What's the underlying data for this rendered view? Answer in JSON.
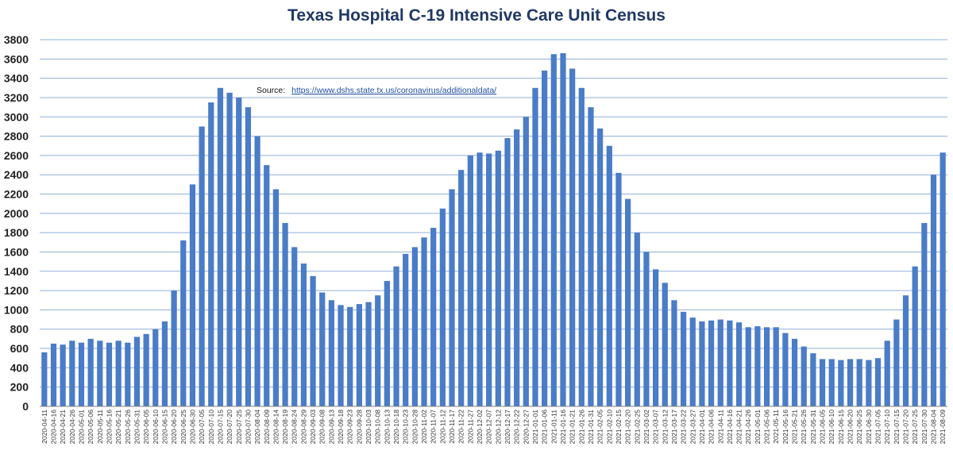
{
  "chart_data": {
    "type": "bar",
    "title": "Texas Hospital C-19 Intensive Care Unit Census",
    "source_label": "Source:",
    "source_url": "https://www.dshs.state.tx.us/coronavirus/additionaldata/",
    "ylim": [
      0,
      3800
    ],
    "y_ticks": [
      0,
      200,
      400,
      600,
      800,
      1000,
      1200,
      1400,
      1600,
      1800,
      2000,
      2200,
      2400,
      2600,
      2800,
      3000,
      3200,
      3400,
      3600,
      3800
    ],
    "x_tick_labels": [
      "2020-04-11",
      "2020-04-16",
      "2020-04-21",
      "2020-04-26",
      "2020-05-01",
      "2020-05-06",
      "2020-05-11",
      "2020-05-16",
      "2020-05-21",
      "2020-05-26",
      "2020-05-31",
      "2020-06-05",
      "2020-06-10",
      "2020-06-15",
      "2020-06-20",
      "2020-06-25",
      "2020-06-30",
      "2020-07-05",
      "2020-07-10",
      "2020-07-15",
      "2020-07-20",
      "2020-07-25",
      "2020-07-30",
      "2020-08-04",
      "2020-08-09",
      "2020-08-14",
      "2020-08-19",
      "2020-08-24",
      "2020-08-29",
      "2020-09-03",
      "2020-09-08",
      "2020-09-13",
      "2020-09-18",
      "2020-09-23",
      "2020-09-28",
      "2020-10-03",
      "2020-10-08",
      "2020-10-13",
      "2020-10-18",
      "2020-10-23",
      "2020-10-28",
      "2020-11-02",
      "2020-11-07",
      "2020-11-12",
      "2020-11-17",
      "2020-11-22",
      "2020-11-27",
      "2020-12-02",
      "2020-12-07",
      "2020-12-12",
      "2020-12-17",
      "2020-12-22",
      "2020-12-27",
      "2021-01-01",
      "2021-01-06",
      "2021-01-11",
      "2021-01-16",
      "2021-01-21",
      "2021-01-26",
      "2021-01-31",
      "2021-02-05",
      "2021-02-10",
      "2021-02-15",
      "2021-02-20",
      "2021-02-25",
      "2021-03-02",
      "2021-03-07",
      "2021-03-12",
      "2021-03-17",
      "2021-03-22",
      "2021-03-27",
      "2021-04-01",
      "2021-04-06",
      "2021-04-11",
      "2021-04-16",
      "2021-04-21",
      "2021-04-26",
      "2021-05-01",
      "2021-05-06",
      "2021-05-11",
      "2021-05-16",
      "2021-05-21",
      "2021-05-26",
      "2021-05-31",
      "2021-06-05",
      "2021-06-10",
      "2021-06-15",
      "2021-06-20",
      "2021-06-25",
      "2021-06-30",
      "2021-07-05",
      "2021-07-10",
      "2021-07-15",
      "2021-07-20",
      "2021-07-25",
      "2021-07-30",
      "2021-08-04",
      "2021-08-09"
    ],
    "values_every_5_days": [
      560,
      650,
      640,
      680,
      660,
      700,
      680,
      660,
      680,
      660,
      720,
      750,
      800,
      880,
      1200,
      1720,
      2300,
      2900,
      3150,
      3300,
      3250,
      3200,
      3100,
      2800,
      2500,
      2250,
      1900,
      1650,
      1480,
      1350,
      1180,
      1100,
      1050,
      1030,
      1060,
      1080,
      1150,
      1300,
      1450,
      1580,
      1650,
      1750,
      1850,
      2050,
      2250,
      2450,
      2600,
      2630,
      2620,
      2650,
      2780,
      2870,
      3000,
      3300,
      3480,
      3650,
      3660,
      3500,
      3300,
      3100,
      2880,
      2700,
      2420,
      2150,
      1800,
      1600,
      1420,
      1280,
      1100,
      980,
      920,
      880,
      890,
      900,
      890,
      870,
      820,
      830,
      820,
      820,
      760,
      700,
      620,
      550,
      490,
      490,
      480,
      490,
      490,
      480,
      500,
      680,
      900,
      1150,
      1450,
      1900,
      2400,
      2630
    ],
    "bar_color": "#4a7cc7",
    "grid_color": "#8fb0da",
    "grid": true
  }
}
